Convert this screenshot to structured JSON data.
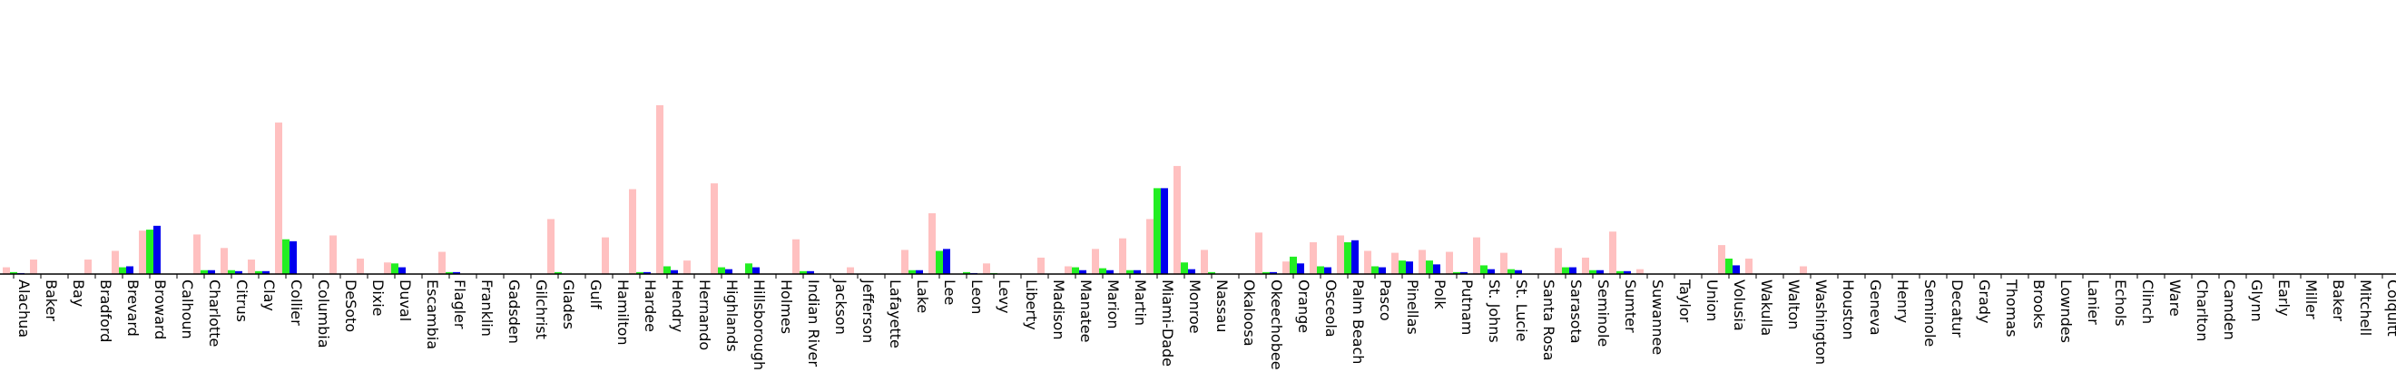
{
  "chart_data": {
    "type": "bar",
    "title": "",
    "xlabel": "",
    "ylabel": "",
    "ylim": [
      0,
      19
    ],
    "grid": false,
    "legend": "none",
    "categories": [
      "Alachua",
      "Baker",
      "Bay",
      "Bradford",
      "Brevard",
      "Broward",
      "Calhoun",
      "Charlotte",
      "Citrus",
      "Clay",
      "Collier",
      "Columbia",
      "DeSoto",
      "Dixie",
      "Duval",
      "Escambia",
      "Flagler",
      "Franklin",
      "Gadsden",
      "Gilchrist",
      "Glades",
      "Gulf",
      "Hamilton",
      "Hardee",
      "Hendry",
      "Hernando",
      "Highlands",
      "Hillsborough",
      "Holmes",
      "Indian River",
      "Jackson",
      "Jefferson",
      "Lafayette",
      "Lake",
      "Lee",
      "Leon",
      "Levy",
      "Liberty",
      "Madison",
      "Manatee",
      "Marion",
      "Martin",
      "Miami-Dade",
      "Monroe",
      "Nassau",
      "Okaloosa",
      "Okeechobee",
      "Orange",
      "Osceola",
      "Palm Beach",
      "Pasco",
      "Pinellas",
      "Polk",
      "Putnam",
      "St. Johns",
      "St. Lucie",
      "Santa Rosa",
      "Sarasota",
      "Seminole",
      "Sumter",
      "Suwannee",
      "Taylor",
      "Union",
      "Volusia",
      "Wakulla",
      "Walton",
      "Washington",
      "Houston",
      "Geneva",
      "Henry",
      "Seminole",
      "Decatur",
      "Grady",
      "Thomas",
      "Brooks",
      "Lowndes",
      "Lanier",
      "Echols",
      "Clinch",
      "Ware",
      "Charlton",
      "Camden",
      "Glynn",
      "Early",
      "Miller",
      "Baker",
      "Mitchell",
      "Colquitt"
    ],
    "series": [
      {
        "color": "#ffc0c0",
        "values": [
          0.7,
          1.5,
          0,
          1.5,
          2.4,
          4.5,
          0,
          4.1,
          2.7,
          1.5,
          15.7,
          0,
          4.0,
          1.6,
          1.2,
          0,
          2.3,
          0,
          0,
          0,
          5.7,
          0,
          3.8,
          8.8,
          17.5,
          1.4,
          9.4,
          0,
          0,
          3.6,
          0,
          0.7,
          0,
          2.5,
          6.3,
          0,
          1.1,
          0,
          1.7,
          0.8,
          2.6,
          3.7,
          5.7,
          11.2,
          2.5,
          0,
          4.3,
          1.3,
          3.3,
          4.0,
          2.4,
          2.2,
          2.5,
          2.3,
          3.8,
          2.2,
          0,
          2.7,
          1.7,
          4.4,
          0.5,
          0,
          0,
          3.0,
          1.6,
          0,
          0.8,
          0,
          0,
          0,
          0,
          0,
          0,
          0,
          0,
          0,
          0,
          0,
          0,
          0,
          0,
          0,
          0,
          0,
          0,
          0,
          0,
          0
        ]
      },
      {
        "color": "#22ee22",
        "values": [
          0.2,
          0,
          0,
          0,
          0.7,
          4.6,
          0,
          0.4,
          0.4,
          0.3,
          3.6,
          0,
          0,
          0,
          1.1,
          0,
          0.2,
          0,
          0,
          0,
          0.2,
          0,
          0,
          0.2,
          0.8,
          0,
          0.7,
          1.1,
          0,
          0.3,
          0,
          0,
          0,
          0.4,
          2.4,
          0.2,
          0.1,
          0,
          0,
          0.7,
          0.6,
          0.4,
          8.9,
          1.2,
          0.2,
          0,
          0.2,
          1.8,
          0.8,
          3.3,
          0.8,
          1.4,
          1.4,
          0.2,
          0.9,
          0.5,
          0,
          0.7,
          0.4,
          0.3,
          0,
          0,
          0,
          1.6,
          0,
          0,
          0,
          0,
          0,
          0,
          0,
          0,
          0,
          0,
          0,
          0,
          0,
          0,
          0,
          0,
          0,
          0,
          0,
          0,
          0,
          0,
          0,
          0
        ]
      },
      {
        "color": "#0000ee",
        "values": [
          0.1,
          0,
          0,
          0,
          0.8,
          5.0,
          0,
          0.4,
          0.3,
          0.3,
          3.4,
          0,
          0,
          0,
          0.7,
          0,
          0.2,
          0,
          0,
          0,
          0,
          0,
          0,
          0.2,
          0.4,
          0,
          0.5,
          0.7,
          0,
          0.3,
          0,
          0,
          0,
          0.4,
          2.6,
          0.1,
          0,
          0,
          0,
          0.4,
          0.4,
          0.4,
          8.9,
          0.5,
          0,
          0,
          0.2,
          1.1,
          0.7,
          3.5,
          0.7,
          1.3,
          1.0,
          0.2,
          0.5,
          0.4,
          0,
          0.7,
          0.4,
          0.3,
          0,
          0,
          0,
          0.9,
          0,
          0,
          0,
          0,
          0,
          0,
          0,
          0,
          0,
          0,
          0,
          0,
          0,
          0,
          0,
          0,
          0,
          0,
          0,
          0,
          0,
          0,
          0,
          0
        ]
      }
    ]
  }
}
